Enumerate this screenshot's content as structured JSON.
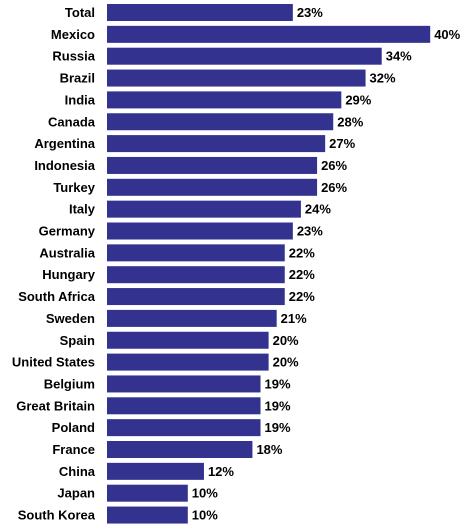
{
  "chart_data": {
    "type": "bar",
    "orientation": "horizontal",
    "categories": [
      "Total",
      "Mexico",
      "Russia",
      "Brazil",
      "India",
      "Canada",
      "Argentina",
      "Indonesia",
      "Turkey",
      "Italy",
      "Germany",
      "Australia",
      "Hungary",
      "South Africa",
      "Sweden",
      "Spain",
      "United States",
      "Belgium",
      "Great Britain",
      "Poland",
      "France",
      "China",
      "Japan",
      "South Korea"
    ],
    "values": [
      23,
      40,
      34,
      32,
      29,
      28,
      27,
      26,
      26,
      24,
      23,
      22,
      22,
      22,
      21,
      20,
      20,
      19,
      19,
      19,
      18,
      12,
      10,
      10
    ],
    "value_labels": [
      "23%",
      "40%",
      "34%",
      "32%",
      "29%",
      "28%",
      "27%",
      "26%",
      "26%",
      "24%",
      "23%",
      "22%",
      "22%",
      "22%",
      "21%",
      "20%",
      "20%",
      "19%",
      "19%",
      "19%",
      "18%",
      "12%",
      "10%",
      "10%"
    ],
    "title": "",
    "xlabel": "",
    "ylabel": "",
    "xlim": [
      0,
      40
    ],
    "grid": false,
    "legend": "none",
    "bar_color": "#33338f"
  }
}
